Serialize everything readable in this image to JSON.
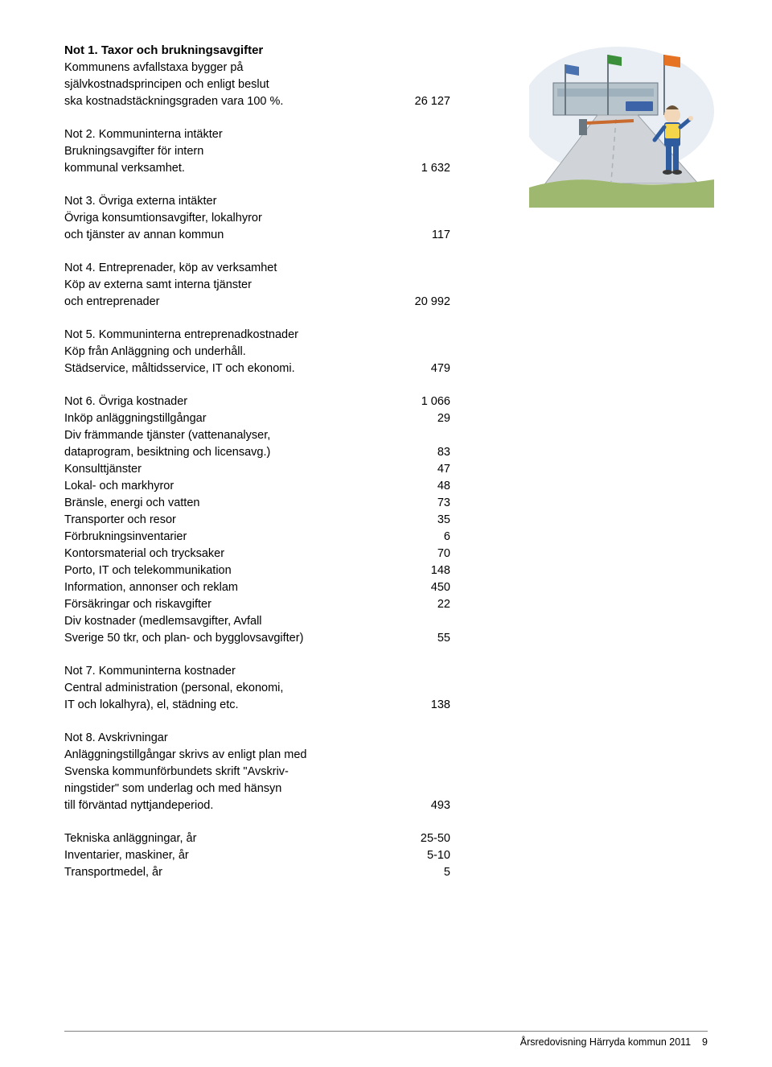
{
  "note1": {
    "title": "Not 1. Taxor och brukningsavgifter",
    "l1": "Kommunens avfallstaxa bygger på",
    "l2": "självkostnadsprincipen och enligt beslut",
    "l3": "ska kostnadstäckningsgraden vara 100 %.",
    "val": "26 127"
  },
  "note2": {
    "title": "Not 2. Kommuninterna intäkter",
    "l1": "Brukningsavgifter för intern",
    "l2": "kommunal verksamhet.",
    "val": "1 632"
  },
  "note3": {
    "title": "Not 3. Övriga externa intäkter",
    "l1": "Övriga konsumtionsavgifter, lokalhyror",
    "l2": "och tjänster av annan kommun",
    "val": "117"
  },
  "note4": {
    "title": "Not 4. Entreprenader, köp av verksamhet",
    "l1": "Köp av externa samt interna tjänster",
    "l2": "och entreprenader",
    "val": "20 992"
  },
  "note5": {
    "title": "Not 5. Kommuninterna entreprenadkostnader",
    "l1": "Köp från Anläggning och underhåll.",
    "l2": "Städservice, måltidsservice, IT och ekonomi.",
    "val": "479"
  },
  "note6": {
    "title": "Not 6. Övriga kostnader",
    "title_val": "1 066",
    "rows": [
      {
        "lbl": "Inköp anläggningstillgångar",
        "val": "29"
      },
      {
        "lbl": "Div främmande tjänster (vattenanalyser,",
        "val": ""
      },
      {
        "lbl": "dataprogram, besiktning och licensavg.)",
        "val": "83"
      },
      {
        "lbl": "Konsulttjänster",
        "val": "47"
      },
      {
        "lbl": "Lokal- och markhyror",
        "val": "48"
      },
      {
        "lbl": "Bränsle, energi och vatten",
        "val": "73"
      },
      {
        "lbl": "Transporter och resor",
        "val": "35"
      },
      {
        "lbl": "Förbrukningsinventarier",
        "val": "6"
      },
      {
        "lbl": "Kontorsmaterial och trycksaker",
        "val": "70"
      },
      {
        "lbl": "Porto, IT och telekommunikation",
        "val": "148"
      },
      {
        "lbl": "Information, annonser och reklam",
        "val": "450"
      },
      {
        "lbl": "Försäkringar och riskavgifter",
        "val": "22"
      },
      {
        "lbl": "Div kostnader (medlemsavgifter, Avfall",
        "val": ""
      },
      {
        "lbl": "Sverige 50 tkr, och plan- och bygglovsavgifter)",
        "val": "55"
      }
    ]
  },
  "note7": {
    "title": "Not 7. Kommuninterna kostnader",
    "l1": "Central administration (personal, ekonomi,",
    "l2": " IT och lokalhyra), el, städning etc.",
    "val": "138"
  },
  "note8": {
    "title": "Not 8. Avskrivningar",
    "l1": "Anläggningstillgångar skrivs av enligt plan med",
    "l2": "Svenska kommunförbundets skrift \"Avskriv-",
    "l3": "ningstider\" som underlag och med hänsyn",
    "l4": "till förväntad nyttjandeperiod.",
    "val": "493",
    "rows": [
      {
        "lbl": "Tekniska anläggningar, år",
        "val": "25-50"
      },
      {
        "lbl": "Inventarier, maskiner, år",
        "val": "5-10"
      },
      {
        "lbl": "Transportmedel, år",
        "val": "5"
      }
    ]
  },
  "footer": {
    "text": "Årsredovisning Härryda kommun 2011",
    "page": "9"
  },
  "ill": {
    "sky": "#e8eef4",
    "road": "#d0d4d8",
    "grass": "#9fb86f",
    "building": "#b8c4cc",
    "worker_suit": "#2f5c9f",
    "worker_vest": "#f5d54a",
    "flag_orange": "#e67324",
    "flag_green": "#3b8f3a",
    "flag_blue": "#4a72b0",
    "sign_blue": "#3c62a8",
    "barrier": "#c96a2e",
    "pole": "#6a7680"
  }
}
